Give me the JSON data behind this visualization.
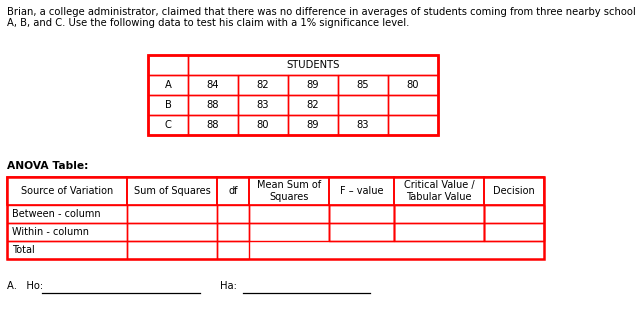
{
  "description_line1": "Brian, a college administrator, claimed that there was no difference in averages of students coming from three nearby schools",
  "description_line2": "A, B, and C. Use the following data to test his claim with a 1% significance level.",
  "students_header": "STUDENTS",
  "data_rows": [
    "A",
    "B",
    "C"
  ],
  "data_values": [
    [
      84,
      82,
      89,
      85,
      80
    ],
    [
      88,
      83,
      82,
      "",
      ""
    ],
    [
      88,
      80,
      89,
      83,
      ""
    ]
  ],
  "anova_label": "ANOVA Table:",
  "anova_headers": [
    "Source of Variation",
    "Sum of Squares",
    "df",
    "Mean Sum of\nSquares",
    "F – value",
    "Critical Value /\nTabular Value",
    "Decision"
  ],
  "anova_rows": [
    "Between - column",
    "Within - column",
    "Total"
  ],
  "footer_a": "A.   Ho:",
  "footer_ha": "Ha:",
  "red": "#ff0000",
  "black": "#000000",
  "white": "#ffffff",
  "fs_desc": 7.2,
  "fs_table": 7.2,
  "fs_anova": 7.0
}
